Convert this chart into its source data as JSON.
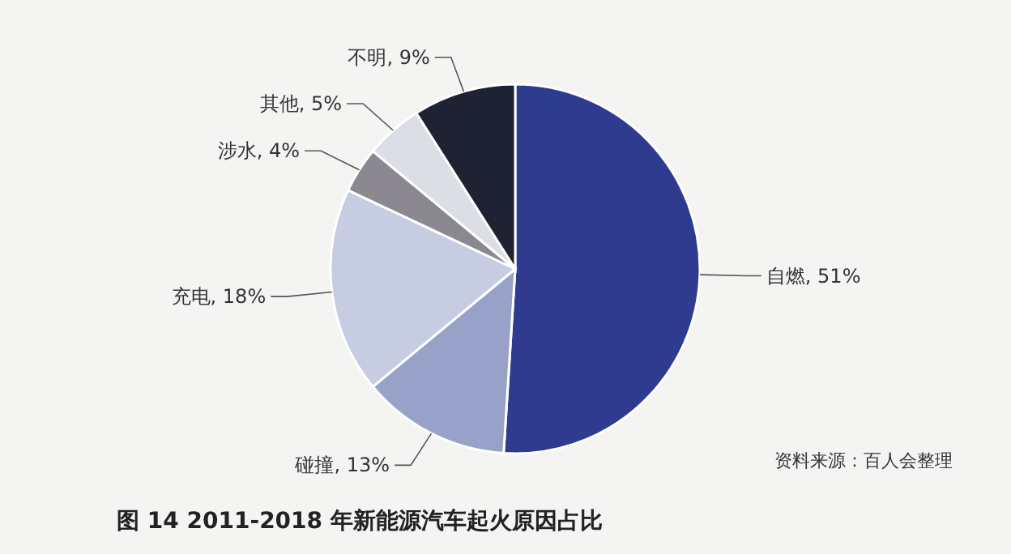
{
  "chart_data": {
    "type": "pie",
    "title": "图 14  2011-2018 年新能源汽车起火原因占比",
    "categories": [
      "自燃",
      "碰撞",
      "充电",
      "涉水",
      "其他",
      "不明"
    ],
    "values": [
      51,
      13,
      18,
      4,
      5,
      9
    ],
    "value_labels": [
      "51%",
      "13%",
      "18%",
      "4%",
      "5%",
      "9%"
    ],
    "colors": [
      "#2f3b8f",
      "#98a2c9",
      "#c6cce1",
      "#8b8892",
      "#dcdee5",
      "#1f2233"
    ],
    "annotations": [
      "资料来源：百人会整理"
    ]
  }
}
